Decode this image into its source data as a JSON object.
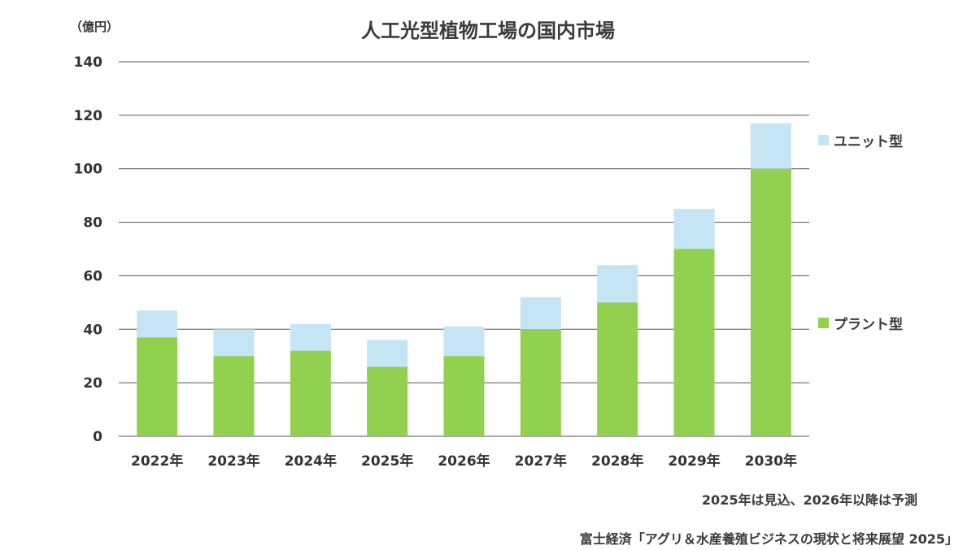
{
  "chart_data": {
    "type": "bar",
    "stacked": true,
    "title": "人工光型植物工場の国内市場",
    "unit_label": "（億円）",
    "categories": [
      "2022年",
      "2023年",
      "2024年",
      "2025年",
      "2026年",
      "2027年",
      "2028年",
      "2029年",
      "2030年"
    ],
    "series": [
      {
        "name": "プラント型",
        "color": "#92d050",
        "values": [
          37,
          30,
          32,
          26,
          30,
          40,
          50,
          70,
          100
        ]
      },
      {
        "name": "ユニット型",
        "color": "#c5e5f5",
        "values": [
          10,
          10,
          10,
          10,
          11,
          12,
          14,
          15,
          17
        ]
      }
    ],
    "ylim": [
      0,
      140
    ],
    "yticks": [
      0,
      20,
      40,
      60,
      80,
      100,
      120,
      140
    ],
    "grid": true,
    "legend_position": "right",
    "note": "2025年は見込、2026年以降は予測",
    "source": "富士経済「アグリ＆水産養殖ビジネスの現状と将来展望 2025」"
  }
}
